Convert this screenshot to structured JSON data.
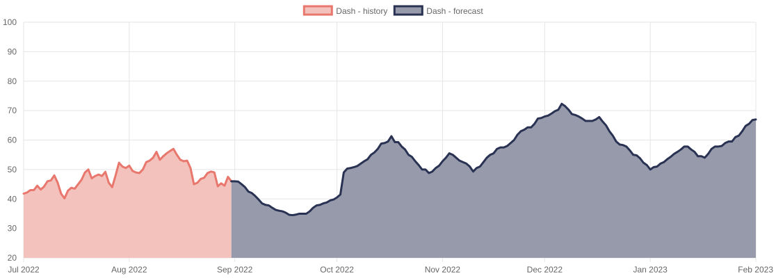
{
  "chart_data": {
    "type": "area",
    "grid": true,
    "legend_position": "top-center",
    "ylim": [
      20,
      100
    ],
    "yticks": [
      20,
      30,
      40,
      50,
      60,
      70,
      80,
      90,
      100
    ],
    "xlim": [
      "2022-07-01",
      "2023-02-01"
    ],
    "xticks": [
      {
        "date": "2022-07-01",
        "label": "Jul 2022"
      },
      {
        "date": "2022-08-01",
        "label": "Aug 2022"
      },
      {
        "date": "2022-09-01",
        "label": "Sep 2022"
      },
      {
        "date": "2022-10-01",
        "label": "Oct 2022"
      },
      {
        "date": "2022-11-01",
        "label": "Nov 2022"
      },
      {
        "date": "2022-12-01",
        "label": "Dec 2022"
      },
      {
        "date": "2023-01-01",
        "label": "Jan 2023"
      },
      {
        "date": "2023-02-01",
        "label": "Feb 2023"
      }
    ],
    "series": [
      {
        "name": "Dash - history",
        "stroke": "#e8776d",
        "fill": "#f4c2bd",
        "points": [
          [
            "2022-07-01",
            41.8
          ],
          [
            "2022-07-02",
            42.2
          ],
          [
            "2022-07-03",
            43.0
          ],
          [
            "2022-07-04",
            43.0
          ],
          [
            "2022-07-05",
            44.5
          ],
          [
            "2022-07-06",
            43.2
          ],
          [
            "2022-07-07",
            44.2
          ],
          [
            "2022-07-08",
            46.0
          ],
          [
            "2022-07-09",
            46.3
          ],
          [
            "2022-07-10",
            48.0
          ],
          [
            "2022-07-11",
            45.5
          ],
          [
            "2022-07-12",
            41.8
          ],
          [
            "2022-07-13",
            40.2
          ],
          [
            "2022-07-14",
            42.8
          ],
          [
            "2022-07-15",
            43.8
          ],
          [
            "2022-07-16",
            43.5
          ],
          [
            "2022-07-17",
            45.0
          ],
          [
            "2022-07-18",
            46.5
          ],
          [
            "2022-07-19",
            49.0
          ],
          [
            "2022-07-20",
            50.0
          ],
          [
            "2022-07-21",
            47.0
          ],
          [
            "2022-07-22",
            47.8
          ],
          [
            "2022-07-23",
            48.3
          ],
          [
            "2022-07-24",
            47.8
          ],
          [
            "2022-07-25",
            49.2
          ],
          [
            "2022-07-26",
            45.5
          ],
          [
            "2022-07-27",
            44.0
          ],
          [
            "2022-07-28",
            48.0
          ],
          [
            "2022-07-29",
            52.3
          ],
          [
            "2022-07-30",
            51.0
          ],
          [
            "2022-07-31",
            50.5
          ],
          [
            "2022-08-01",
            51.3
          ],
          [
            "2022-08-02",
            49.5
          ],
          [
            "2022-08-03",
            49.0
          ],
          [
            "2022-08-04",
            48.8
          ],
          [
            "2022-08-05",
            50.0
          ],
          [
            "2022-08-06",
            52.5
          ],
          [
            "2022-08-07",
            53.0
          ],
          [
            "2022-08-08",
            54.0
          ],
          [
            "2022-08-09",
            56.0
          ],
          [
            "2022-08-10",
            53.3
          ],
          [
            "2022-08-11",
            54.5
          ],
          [
            "2022-08-12",
            55.5
          ],
          [
            "2022-08-13",
            56.3
          ],
          [
            "2022-08-14",
            57.0
          ],
          [
            "2022-08-15",
            55.0
          ],
          [
            "2022-08-16",
            53.3
          ],
          [
            "2022-08-17",
            52.8
          ],
          [
            "2022-08-18",
            53.0
          ],
          [
            "2022-08-19",
            50.5
          ],
          [
            "2022-08-20",
            45.0
          ],
          [
            "2022-08-21",
            45.5
          ],
          [
            "2022-08-22",
            46.8
          ],
          [
            "2022-08-23",
            47.2
          ],
          [
            "2022-08-24",
            48.8
          ],
          [
            "2022-08-25",
            49.3
          ],
          [
            "2022-08-26",
            49.0
          ],
          [
            "2022-08-27",
            44.3
          ],
          [
            "2022-08-28",
            45.3
          ],
          [
            "2022-08-29",
            44.5
          ],
          [
            "2022-08-30",
            47.5
          ],
          [
            "2022-08-31",
            46.0
          ]
        ]
      },
      {
        "name": "Dash - forecast",
        "stroke": "#293252",
        "fill": "#969aaa",
        "points": [
          [
            "2022-08-31",
            46.0
          ],
          [
            "2022-09-01",
            46.0
          ],
          [
            "2022-09-02",
            45.9
          ],
          [
            "2022-09-03",
            45.0
          ],
          [
            "2022-09-04",
            44.0
          ],
          [
            "2022-09-05",
            42.5
          ],
          [
            "2022-09-06",
            42.0
          ],
          [
            "2022-09-07",
            41.0
          ],
          [
            "2022-09-08",
            39.8
          ],
          [
            "2022-09-09",
            38.5
          ],
          [
            "2022-09-10",
            38.0
          ],
          [
            "2022-09-11",
            37.8
          ],
          [
            "2022-09-12",
            37.0
          ],
          [
            "2022-09-13",
            36.3
          ],
          [
            "2022-09-14",
            36.0
          ],
          [
            "2022-09-15",
            35.8
          ],
          [
            "2022-09-16",
            35.3
          ],
          [
            "2022-09-17",
            34.6
          ],
          [
            "2022-09-18",
            34.5
          ],
          [
            "2022-09-19",
            34.7
          ],
          [
            "2022-09-20",
            35.0
          ],
          [
            "2022-09-21",
            35.0
          ],
          [
            "2022-09-22",
            35.0
          ],
          [
            "2022-09-23",
            35.8
          ],
          [
            "2022-09-24",
            37.0
          ],
          [
            "2022-09-25",
            37.8
          ],
          [
            "2022-09-26",
            38.0
          ],
          [
            "2022-09-27",
            38.5
          ],
          [
            "2022-09-28",
            38.8
          ],
          [
            "2022-09-29",
            39.5
          ],
          [
            "2022-09-30",
            39.8
          ],
          [
            "2022-10-01",
            40.5
          ],
          [
            "2022-10-02",
            41.5
          ],
          [
            "2022-10-03",
            49.0
          ],
          [
            "2022-10-04",
            50.3
          ],
          [
            "2022-10-05",
            50.5
          ],
          [
            "2022-10-06",
            50.8
          ],
          [
            "2022-10-07",
            51.2
          ],
          [
            "2022-10-08",
            52.0
          ],
          [
            "2022-10-09",
            52.8
          ],
          [
            "2022-10-10",
            53.5
          ],
          [
            "2022-10-11",
            55.0
          ],
          [
            "2022-10-12",
            55.8
          ],
          [
            "2022-10-13",
            57.0
          ],
          [
            "2022-10-14",
            58.8
          ],
          [
            "2022-10-15",
            59.0
          ],
          [
            "2022-10-16",
            59.5
          ],
          [
            "2022-10-17",
            61.3
          ],
          [
            "2022-10-18",
            59.3
          ],
          [
            "2022-10-19",
            59.3
          ],
          [
            "2022-10-20",
            57.8
          ],
          [
            "2022-10-21",
            56.8
          ],
          [
            "2022-10-22",
            55.0
          ],
          [
            "2022-10-23",
            54.3
          ],
          [
            "2022-10-24",
            52.8
          ],
          [
            "2022-10-25",
            51.5
          ],
          [
            "2022-10-26",
            50.0
          ],
          [
            "2022-10-27",
            50.0
          ],
          [
            "2022-10-28",
            48.8
          ],
          [
            "2022-10-29",
            49.3
          ],
          [
            "2022-10-30",
            50.5
          ],
          [
            "2022-10-31",
            51.3
          ],
          [
            "2022-11-01",
            52.8
          ],
          [
            "2022-11-02",
            54.0
          ],
          [
            "2022-11-03",
            55.5
          ],
          [
            "2022-11-04",
            55.0
          ],
          [
            "2022-11-05",
            54.0
          ],
          [
            "2022-11-06",
            53.0
          ],
          [
            "2022-11-07",
            52.5
          ],
          [
            "2022-11-08",
            52.0
          ],
          [
            "2022-11-09",
            51.0
          ],
          [
            "2022-11-10",
            49.3
          ],
          [
            "2022-11-11",
            50.5
          ],
          [
            "2022-11-12",
            51.0
          ],
          [
            "2022-11-13",
            52.5
          ],
          [
            "2022-11-14",
            54.0
          ],
          [
            "2022-11-15",
            55.0
          ],
          [
            "2022-11-16",
            55.5
          ],
          [
            "2022-11-17",
            57.0
          ],
          [
            "2022-11-18",
            57.5
          ],
          [
            "2022-11-19",
            57.5
          ],
          [
            "2022-11-20",
            58.0
          ],
          [
            "2022-11-21",
            59.0
          ],
          [
            "2022-11-22",
            60.0
          ],
          [
            "2022-11-23",
            61.8
          ],
          [
            "2022-11-24",
            63.0
          ],
          [
            "2022-11-25",
            63.5
          ],
          [
            "2022-11-26",
            64.3
          ],
          [
            "2022-11-27",
            64.3
          ],
          [
            "2022-11-28",
            65.5
          ],
          [
            "2022-11-29",
            67.3
          ],
          [
            "2022-11-30",
            67.5
          ],
          [
            "2022-12-01",
            68.0
          ],
          [
            "2022-12-02",
            68.3
          ],
          [
            "2022-12-03",
            69.0
          ],
          [
            "2022-12-04",
            69.8
          ],
          [
            "2022-12-05",
            70.3
          ],
          [
            "2022-12-06",
            72.3
          ],
          [
            "2022-12-07",
            71.5
          ],
          [
            "2022-12-08",
            70.3
          ],
          [
            "2022-12-09",
            68.8
          ],
          [
            "2022-12-10",
            68.5
          ],
          [
            "2022-12-11",
            68.0
          ],
          [
            "2022-12-12",
            67.3
          ],
          [
            "2022-12-13",
            66.5
          ],
          [
            "2022-12-14",
            66.5
          ],
          [
            "2022-12-15",
            66.5
          ],
          [
            "2022-12-16",
            67.0
          ],
          [
            "2022-12-17",
            67.8
          ],
          [
            "2022-12-18",
            66.3
          ],
          [
            "2022-12-19",
            65.0
          ],
          [
            "2022-12-20",
            63.0
          ],
          [
            "2022-12-21",
            61.5
          ],
          [
            "2022-12-22",
            59.5
          ],
          [
            "2022-12-23",
            58.5
          ],
          [
            "2022-12-24",
            58.3
          ],
          [
            "2022-12-25",
            57.8
          ],
          [
            "2022-12-26",
            56.5
          ],
          [
            "2022-12-27",
            55.0
          ],
          [
            "2022-12-28",
            54.8
          ],
          [
            "2022-12-29",
            53.8
          ],
          [
            "2022-12-30",
            52.3
          ],
          [
            "2022-12-31",
            51.5
          ],
          [
            "2023-01-01",
            50.0
          ],
          [
            "2023-01-02",
            50.8
          ],
          [
            "2023-01-03",
            51.0
          ],
          [
            "2023-01-04",
            52.0
          ],
          [
            "2023-01-05",
            52.5
          ],
          [
            "2023-01-06",
            53.5
          ],
          [
            "2023-01-07",
            54.3
          ],
          [
            "2023-01-08",
            55.3
          ],
          [
            "2023-01-09",
            56.0
          ],
          [
            "2023-01-10",
            56.8
          ],
          [
            "2023-01-11",
            57.8
          ],
          [
            "2023-01-12",
            57.8
          ],
          [
            "2023-01-13",
            56.8
          ],
          [
            "2023-01-14",
            56.0
          ],
          [
            "2023-01-15",
            54.5
          ],
          [
            "2023-01-16",
            54.5
          ],
          [
            "2023-01-17",
            54.0
          ],
          [
            "2023-01-18",
            55.3
          ],
          [
            "2023-01-19",
            57.0
          ],
          [
            "2023-01-20",
            57.8
          ],
          [
            "2023-01-21",
            57.8
          ],
          [
            "2023-01-22",
            58.0
          ],
          [
            "2023-01-23",
            59.0
          ],
          [
            "2023-01-24",
            59.5
          ],
          [
            "2023-01-25",
            59.5
          ],
          [
            "2023-01-26",
            61.0
          ],
          [
            "2023-01-27",
            61.5
          ],
          [
            "2023-01-28",
            63.0
          ],
          [
            "2023-01-29",
            64.8
          ],
          [
            "2023-01-30",
            65.5
          ],
          [
            "2023-01-31",
            66.8
          ],
          [
            "2023-02-01",
            67.0
          ]
        ]
      }
    ]
  }
}
